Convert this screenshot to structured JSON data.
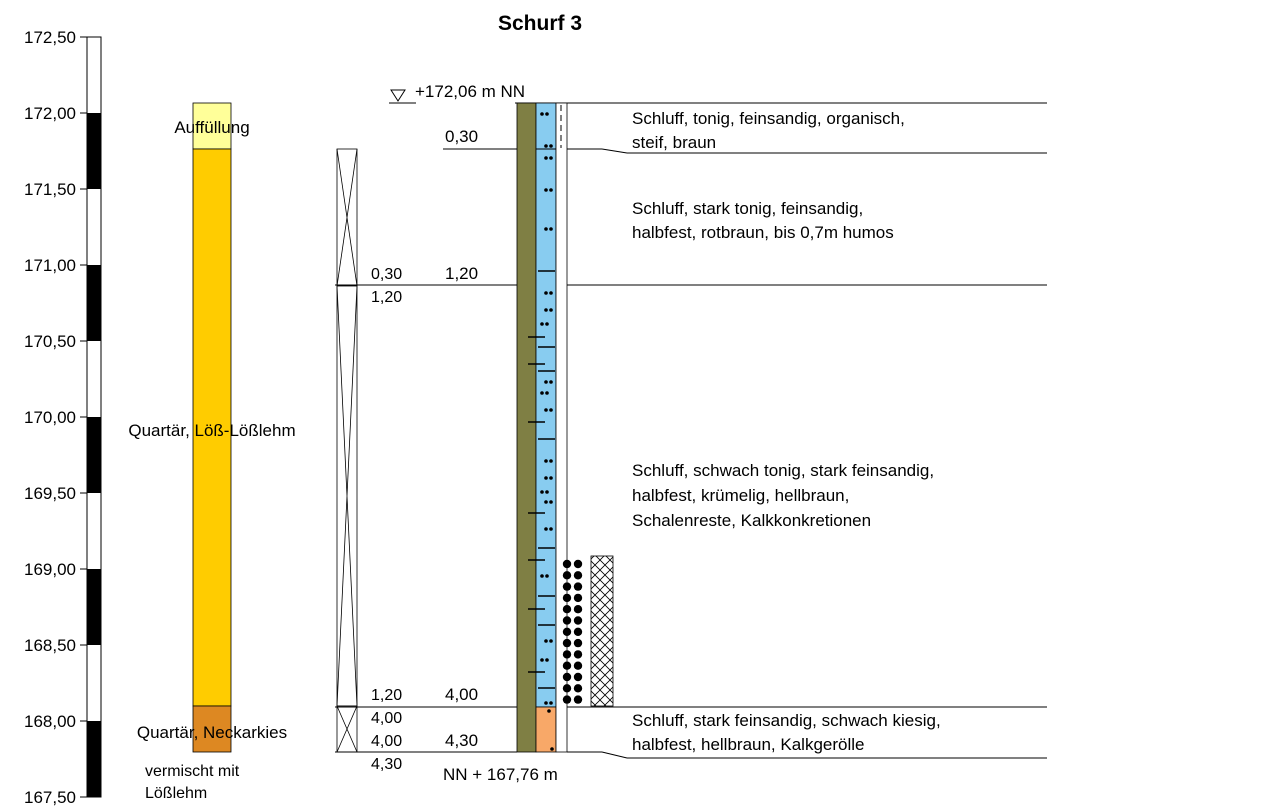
{
  "title": "Schurf 3",
  "colors": {
    "auffuellung": "#ffff99",
    "loess": "#ffcc00",
    "neckarkies": "#dd8822",
    "olive_column": "#7f7f44",
    "silt_column": "#88ccf0",
    "gravel_column": "#f8a868"
  },
  "elevation_axis": {
    "min": 167.5,
    "max": 172.5,
    "ticks": [
      "172,50",
      "172,00",
      "171,50",
      "171,00",
      "170,50",
      "170,00",
      "169,50",
      "169,00",
      "168,50",
      "168,00",
      "167,50"
    ]
  },
  "strat_units": [
    {
      "label": "Auffüllung",
      "top": 172.06,
      "bottom": 171.76,
      "color": "#ffff99"
    },
    {
      "label": "Quartär, Löß-Lößlehm",
      "top": 171.76,
      "bottom": 168.06,
      "color": "#ffcc00"
    },
    {
      "label": "Quartär, Neckarkies",
      "top": 168.06,
      "bottom": 167.76,
      "color": "#dd8822",
      "sublabel_1": "vermischt mit",
      "sublabel_2": "Lößlehm"
    }
  ],
  "ground_level_label": "+172,06 m NN",
  "bottom_label": "NN + 167,76 m",
  "sample_depths": [
    {
      "top": "0,30",
      "bottom": "1,20"
    },
    {
      "top": "1,20",
      "bottom": "4,00"
    },
    {
      "top": "4,00",
      "bottom": "4,30"
    }
  ],
  "layers": [
    {
      "bottom_depth": "0,30",
      "description_lines": [
        "Schluff, tonig, feinsandig, organisch,",
        "steif, braun"
      ]
    },
    {
      "bottom_depth": "1,20",
      "description_lines": [
        "Schluff, stark tonig, feinsandig,",
        "halbfest, rotbraun, bis 0,7m humos"
      ]
    },
    {
      "bottom_depth": "4,00",
      "description_lines": [
        "Schluff, schwach tonig, stark feinsandig,",
        "halbfest, krümelig, hellbraun,",
        "Schalenreste, Kalkkonkretionen"
      ]
    },
    {
      "bottom_depth": "4,30",
      "description_lines": [
        "Schluff, stark feinsandig, schwach kiesig,",
        "halbfest, hellbraun, Kalkgerölle"
      ]
    }
  ]
}
